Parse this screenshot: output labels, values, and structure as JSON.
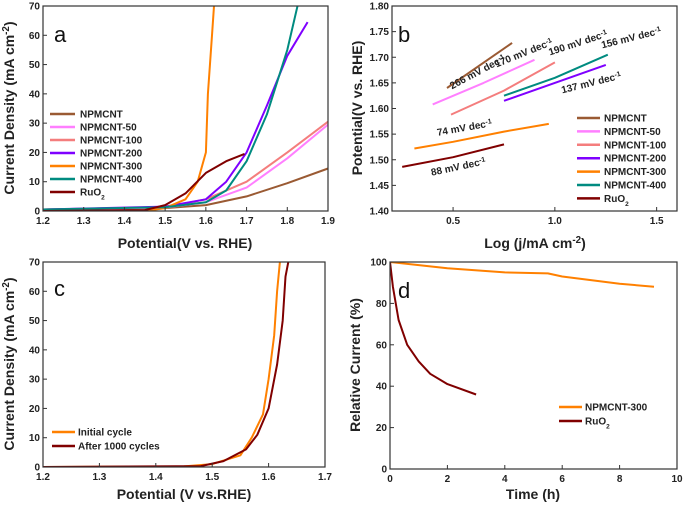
{
  "chart_data": [
    {
      "panel": "a",
      "type": "line",
      "xlabel": {
        "text": "Potential(V vs. RHE)"
      },
      "ylabel": {
        "text": "Current Density (mA cm",
        "sup": "-2",
        "tail": ")"
      },
      "xlim": [
        1.2,
        1.9
      ],
      "ylim": [
        0,
        70
      ],
      "xticks": [
        "1.2",
        "1.3",
        "1.4",
        "1.5",
        "1.6",
        "1.7",
        "1.8",
        "1.9"
      ],
      "yticks": [
        "0",
        "10",
        "20",
        "30",
        "40",
        "50",
        "60",
        "70"
      ],
      "grid": false,
      "legend_placement": "left",
      "series": [
        {
          "name": "NPMCNT",
          "color": "#9a5a33",
          "x": [
            1.2,
            1.5,
            1.6,
            1.7,
            1.8,
            1.9
          ],
          "y": [
            0.5,
            1,
            2,
            5,
            9.5,
            14.5
          ]
        },
        {
          "name": "NPMCNT-50",
          "color": "#ff7fff",
          "x": [
            1.2,
            1.5,
            1.6,
            1.7,
            1.8,
            1.9
          ],
          "y": [
            0.5,
            1.2,
            3,
            8,
            18,
            29.5
          ]
        },
        {
          "name": "NPMCNT-100",
          "color": "#f47d7d",
          "x": [
            1.2,
            1.5,
            1.6,
            1.7,
            1.8,
            1.9
          ],
          "y": [
            0.5,
            1.3,
            4,
            10,
            20,
            30.5
          ]
        },
        {
          "name": "NPMCNT-200",
          "color": "#7f00ff",
          "x": [
            1.2,
            1.5,
            1.6,
            1.65,
            1.7,
            1.75,
            1.8,
            1.85
          ],
          "y": [
            0.5,
            1.5,
            4,
            10,
            20,
            36,
            53,
            64.5
          ]
        },
        {
          "name": "NPMCNT-300",
          "color": "#ff8000",
          "x": [
            1.2,
            1.45,
            1.5,
            1.55,
            1.58,
            1.6,
            1.605,
            1.615,
            1.62
          ],
          "y": [
            0,
            0,
            1,
            4,
            10,
            20,
            40,
            60,
            70
          ]
        },
        {
          "name": "NPMCNT-400",
          "color": "#008b80",
          "x": [
            1.2,
            1.5,
            1.6,
            1.65,
            1.7,
            1.75,
            1.8,
            1.825
          ],
          "y": [
            0.5,
            1.3,
            3,
            7,
            17,
            33,
            55,
            70
          ]
        },
        {
          "name": "RuO",
          "sub": "2",
          "color": "#800000",
          "x": [
            1.2,
            1.45,
            1.5,
            1.55,
            1.6,
            1.65,
            1.695
          ],
          "y": [
            0,
            0.3,
            2,
            6,
            13,
            17,
            19.5
          ]
        }
      ]
    },
    {
      "panel": "b",
      "type": "line",
      "xlabel": {
        "text": "Log (j/mA cm",
        "sup": "-2",
        "tail": ")"
      },
      "ylabel": {
        "text": "Potential(V vs. RHE)"
      },
      "xlim": [
        0.2,
        1.6
      ],
      "ylim": [
        1.4,
        1.8
      ],
      "xticks": [
        "0.5",
        "1.0",
        "1.5"
      ],
      "yticks": [
        "1.40",
        "1.45",
        "1.50",
        "1.55",
        "1.60",
        "1.65",
        "1.70",
        "1.75",
        "1.80"
      ],
      "grid": false,
      "legend_placement": "bottom-right",
      "series": [
        {
          "name": "NPMCNT",
          "color": "#9a5a33",
          "x": [
            0.47,
            0.79
          ],
          "y": [
            1.64,
            1.728
          ],
          "annotation": {
            "text": "266 mV dec",
            "sup": "-1"
          }
        },
        {
          "name": "NPMCNT-50",
          "color": "#ff7fff",
          "x": [
            0.4,
            0.65,
            0.9
          ],
          "y": [
            1.608,
            1.65,
            1.695
          ],
          "annotation": {
            "text": "170 mV dec",
            "sup": "-1"
          }
        },
        {
          "name": "NPMCNT-100",
          "color": "#f47d7d",
          "x": [
            0.49,
            0.75,
            1.0
          ],
          "y": [
            1.588,
            1.635,
            1.69
          ],
          "annotation": {
            "text": "190 mV dec",
            "sup": "-1"
          }
        },
        {
          "name": "NPMCNT-200",
          "color": "#7f00ff",
          "x": [
            0.75,
            1.25
          ],
          "y": [
            1.615,
            1.685
          ],
          "annotation": {
            "text": "137 mV dec",
            "sup": "-1"
          }
        },
        {
          "name": "NPMCNT-300",
          "color": "#ff8000",
          "x": [
            0.31,
            0.5,
            0.75,
            0.97
          ],
          "y": [
            1.522,
            1.535,
            1.555,
            1.57
          ],
          "annotation": {
            "text": "74 mV dec",
            "sup": "-1"
          }
        },
        {
          "name": "NPMCNT-400",
          "color": "#008b80",
          "x": [
            0.75,
            1.0,
            1.26
          ],
          "y": [
            1.625,
            1.66,
            1.705
          ],
          "annotation": {
            "text": "156 mV dec",
            "sup": "-1"
          }
        },
        {
          "name": "RuO",
          "sub": "2",
          "color": "#800000",
          "x": [
            0.25,
            0.5,
            0.75
          ],
          "y": [
            1.486,
            1.505,
            1.53
          ],
          "annotation": {
            "text": "88 mV dec",
            "sup": "-1"
          }
        }
      ]
    },
    {
      "panel": "c",
      "type": "line",
      "xlabel": {
        "text": "Potential (V vs.RHE)"
      },
      "ylabel": {
        "text": "Current Density (mA cm",
        "sup": "-2",
        "tail": ")"
      },
      "xlim": [
        1.2,
        1.7
      ],
      "ylim": [
        0,
        70
      ],
      "xticks": [
        "1.2",
        "1.3",
        "1.4",
        "1.5",
        "1.6",
        "1.7"
      ],
      "yticks": [
        "0",
        "10",
        "20",
        "30",
        "40",
        "50",
        "60",
        "70"
      ],
      "grid": false,
      "legend_placement": "left",
      "series": [
        {
          "name": "Initial cycle",
          "color": "#ff8000",
          "x": [
            1.2,
            1.45,
            1.5,
            1.55,
            1.57,
            1.59,
            1.6,
            1.61,
            1.615,
            1.62
          ],
          "y": [
            0,
            0.2,
            1,
            4,
            10,
            18,
            30,
            45,
            60,
            70
          ]
        },
        {
          "name": "After 1000 cycles",
          "color": "#800000",
          "x": [
            1.2,
            1.48,
            1.52,
            1.56,
            1.58,
            1.6,
            1.615,
            1.625,
            1.63,
            1.635
          ],
          "y": [
            0,
            0.3,
            2,
            6,
            11,
            20,
            35,
            50,
            65,
            70
          ]
        }
      ]
    },
    {
      "panel": "d",
      "type": "line",
      "xlabel": {
        "text": "Time (h)"
      },
      "ylabel": {
        "text": "Relative Current (%)"
      },
      "xlim": [
        0,
        10
      ],
      "ylim": [
        0,
        100
      ],
      "xticks": [
        "0",
        "2",
        "4",
        "6",
        "8",
        "10"
      ],
      "yticks": [
        "0",
        "20",
        "40",
        "60",
        "80",
        "100"
      ],
      "grid": false,
      "legend_placement": "bottom-right",
      "series": [
        {
          "name": "NPMCNT-300",
          "color": "#ff8000",
          "x": [
            0,
            2,
            4,
            5.5,
            6,
            8,
            9.2
          ],
          "y": [
            100,
            97,
            95,
            94.5,
            93,
            89.5,
            88
          ]
        },
        {
          "name": "RuO",
          "sub": "2",
          "color": "#800000",
          "x": [
            0,
            0.1,
            0.3,
            0.6,
            1,
            1.4,
            2,
            3
          ],
          "y": [
            100,
            88,
            72,
            60,
            52,
            46,
            41,
            36
          ]
        }
      ]
    }
  ]
}
